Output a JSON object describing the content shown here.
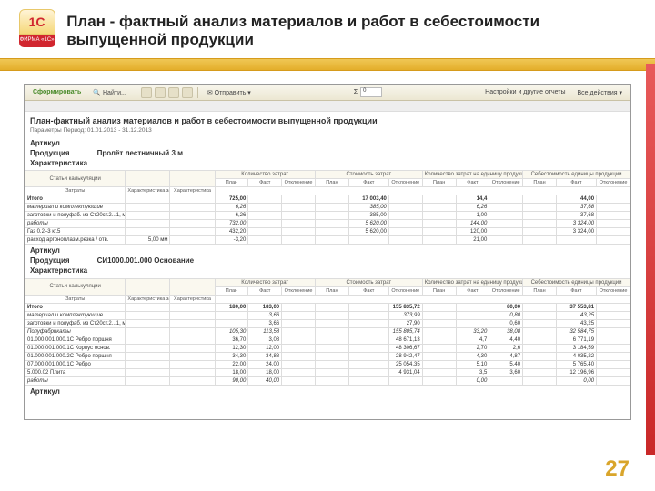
{
  "slide": {
    "title": "План - фактный анализ материалов и работ в себестоимости выпущенной продукции",
    "page_number": "27",
    "logo_top": "1С",
    "logo_bottom": "ФИРМА «1С»"
  },
  "toolbar": {
    "run": "Сформировать",
    "search": "Найти...",
    "send": "Отправить",
    "sigma_val": "0",
    "right1": "Настройки и другие отчеты",
    "right2": "Все действия"
  },
  "report": {
    "title": "План-фактный анализ материалов и работ в себестоимости выпущенной продукции",
    "subtitle": "Параметры   Период: 01.01.2013 - 31.12.2013",
    "group1": {
      "art": "Артикул",
      "prod": "Продукция",
      "prod_val": "Пролёт лестничный 3 м",
      "char": "Характеристика"
    },
    "group2": {
      "art": "Артикул",
      "prod": "Продукция",
      "prod_val": "СИ1000.001.000 Основание",
      "char": "Характеристика"
    },
    "col_groups": {
      "c1": "Статьи калькуляции",
      "c2": "Количество затрат",
      "c3": "Стоимость затрат",
      "c4": "Количество затрат на единицу продукции",
      "c5": "Себестоимость единицы продукции"
    },
    "sub_cols": {
      "s0": "Затраты",
      "s1": "Характеристика затрат",
      "s2": "Характеристика",
      "plan": "План",
      "fact": "Факт",
      "dev": "Отклонение"
    },
    "rows1": [
      {
        "name": "Итого",
        "c": [
          "",
          "",
          "725,00",
          "",
          "",
          " ",
          "17 003,40",
          "",
          "",
          "14,4",
          "",
          "",
          "44,00",
          ""
        ],
        "bold": true
      },
      {
        "name": "материал и комплектующие",
        "c": [
          "",
          "",
          "6,26",
          "",
          "",
          "",
          "385,00",
          "",
          "",
          "6,26",
          "",
          "",
          "37,68",
          ""
        ],
        "ital": true
      },
      {
        "name": "заготовки и полуфаб. из Ст20ст.2...1, мм",
        "c": [
          "",
          "",
          "6,26",
          "",
          "",
          "",
          "385,00",
          "",
          "",
          "1,00",
          "",
          "",
          "37,68",
          ""
        ]
      },
      {
        "name": "работы",
        "c": [
          "",
          "",
          "732,00",
          "",
          "",
          "",
          "5 620,00",
          "",
          "",
          "144,00",
          "",
          "",
          "3 324,00",
          ""
        ],
        "ital": true
      },
      {
        "name": "Газ 0.2–3 кг.5",
        "c": [
          "",
          "",
          "432,20",
          "",
          "",
          "",
          "5 620,00",
          "",
          "",
          "120,00",
          "",
          "",
          "3 324,00",
          ""
        ]
      },
      {
        "name": "расход аргоноплазм.резка / отв.",
        "c": [
          "5,00 мм",
          "",
          "-3,20",
          "",
          "",
          "",
          "",
          "",
          "",
          "21,00",
          "",
          "",
          "",
          ""
        ]
      }
    ],
    "rows2": [
      {
        "name": "Итого",
        "c": [
          "",
          "",
          "180,00",
          "183,00",
          "",
          "",
          "",
          "155 835,72",
          "",
          "",
          "80,00",
          "",
          "37 553,81",
          ""
        ],
        "bold": true
      },
      {
        "name": "материал и комплектующие",
        "c": [
          "",
          "",
          "",
          "3,66",
          "",
          "",
          "",
          "373,99",
          "",
          "",
          "0,80",
          "",
          "43,25",
          ""
        ],
        "ital": true
      },
      {
        "name": "заготовки и полуфаб. из Ст20ст.2...1, мм",
        "c": [
          "",
          "",
          "",
          "3,66",
          "",
          "",
          "",
          "27,90",
          "",
          "",
          "0,60",
          "",
          "43,25",
          ""
        ]
      },
      {
        "name": "Полуфабрикаты",
        "c": [
          "",
          "",
          "105,30",
          "113,58",
          "",
          "",
          "",
          "155 805,74",
          "",
          "33,20",
          "38,08",
          "",
          "32 584,75",
          ""
        ],
        "ital": true
      },
      {
        "name": "01.000.001.000.1С Ребро поршня",
        "c": [
          "",
          "",
          "36,70",
          "3,08",
          "",
          "",
          "",
          "48 671,13",
          "",
          "4,7",
          "4,40",
          "",
          "6 771,19",
          ""
        ]
      },
      {
        "name": "01.000.001.000.1С Корпус основ.",
        "c": [
          "",
          "",
          "12,30",
          "12,00",
          "",
          "",
          "",
          "48 306,67",
          "",
          "2,70",
          "2,6",
          "",
          "3 184,59",
          ""
        ]
      },
      {
        "name": "01.000.001.000.2С Ребро поршня",
        "c": [
          "",
          "",
          "34,30",
          "34,88",
          "",
          "",
          "",
          "28 942,47",
          "",
          "4,30",
          "4,87",
          "",
          "4 035,22",
          ""
        ]
      },
      {
        "name": "07.000.001.000.1С Ребро",
        "c": [
          "",
          "",
          "22,00",
          "24,00",
          "",
          "",
          "",
          "25 054,35",
          "",
          "5,10",
          "5,40",
          "",
          "5 765,40",
          ""
        ]
      },
      {
        "name": "5.000.02 Плита",
        "c": [
          "",
          "",
          "18,00",
          "18,00",
          "",
          "",
          "",
          "4 931,04",
          "",
          "3,5",
          "3,60",
          "",
          "12 196,96",
          ""
        ]
      },
      {
        "name": "работы",
        "c": [
          "",
          "",
          "90,00",
          "40,00",
          "",
          "",
          "",
          "",
          "",
          "0,00",
          "",
          "",
          "0,00",
          ""
        ],
        "ital": true
      }
    ]
  }
}
